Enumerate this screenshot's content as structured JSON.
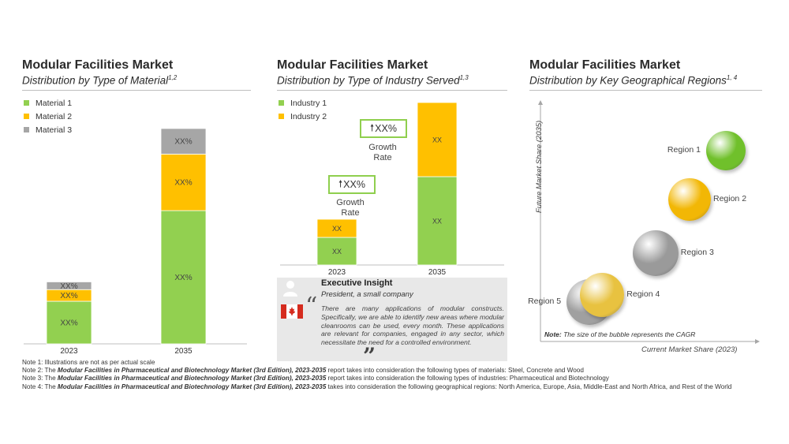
{
  "chart_data": [
    {
      "type": "bar",
      "stacked": true,
      "title": "Modular Facilities Market",
      "subtitle": "Distribution by Type of Material",
      "subtitle_sup": "1,2",
      "categories": [
        "2023",
        "2035"
      ],
      "series": [
        {
          "name": "Material 1",
          "color": "#92d050",
          "values": [
            55,
            172
          ],
          "labels": [
            "XX%",
            "XX%"
          ]
        },
        {
          "name": "Material 2",
          "color": "#ffc000",
          "values": [
            15,
            73
          ],
          "labels": [
            "XX%",
            "XX%"
          ]
        },
        {
          "name": "Material 3",
          "color": "#a6a6a6",
          "values": [
            10,
            33
          ],
          "labels": [
            "XX%",
            "XX%"
          ]
        }
      ],
      "ylim": [
        0,
        280
      ]
    },
    {
      "type": "bar",
      "stacked": true,
      "title": "Modular Facilities Market",
      "subtitle": "Distribution by Type of Industry Served",
      "subtitle_sup": "1,3",
      "categories": [
        "2023",
        "2035"
      ],
      "series": [
        {
          "name": "Industry 1",
          "color": "#92d050",
          "values": [
            35,
            112
          ],
          "labels": [
            "XX",
            "XX"
          ]
        },
        {
          "name": "Industry 2",
          "color": "#ffc000",
          "values": [
            23,
            94
          ],
          "labels": [
            "XX",
            "XX"
          ]
        }
      ],
      "ylim": [
        0,
        206
      ],
      "growth": [
        {
          "value": "XX%",
          "label": "Growth Rate"
        },
        {
          "value": "XX%",
          "label": "Growth Rate"
        }
      ]
    },
    {
      "type": "scatter",
      "title": "Modular Facilities Market",
      "subtitle": "Distribution by Key Geographical Regions",
      "subtitle_sup": "1, 4",
      "xlabel": "Current Market Share (2023)",
      "ylabel": "Future Market Share (2035)",
      "xlim": [
        0,
        100
      ],
      "ylim": [
        0,
        100
      ],
      "note_bold": "Note:",
      "note": "The size of the bubble represents the CAGR",
      "points": [
        {
          "name": "Region 1",
          "x": 87,
          "y": 82,
          "size": 50,
          "color": "#70c02b"
        },
        {
          "name": "Region 2",
          "x": 70,
          "y": 61,
          "size": 54,
          "color": "#f2b705"
        },
        {
          "name": "Region 3",
          "x": 54,
          "y": 38,
          "size": 58,
          "color": "#9a9a9a"
        },
        {
          "name": "Region 4",
          "x": 29,
          "y": 20,
          "size": 56,
          "color": "#e8c240"
        },
        {
          "name": "Region 5",
          "x": 23,
          "y": 17,
          "size": 58,
          "color": "#a0a0a0"
        }
      ]
    }
  ],
  "insight": {
    "heading": "Executive Insight",
    "role": "President, a small company",
    "quote": "There are many applications of modular constructs. Specifically, we are able to identify new areas where modular cleanrooms can be used, every month. These applications are relevant for companies, engaged in any sector, which necessitate the need for a controlled environment."
  },
  "notes": [
    {
      "pre": "Note 1: Illustrations are not as per actual scale",
      "bold": "",
      "post": ""
    },
    {
      "pre": "Note 2: The ",
      "bold": "Modular Facilities in Pharmaceutical and Biotechnology Market (3rd Edition), 2023-2035",
      "post": " report takes into consideration the following types of materials: Steel, Concrete and Wood"
    },
    {
      "pre": "Note 3: The ",
      "bold": "Modular Facilities in Pharmaceutical and Biotechnology Market (3rd Edition), 2023-2035",
      "post": " report takes into consideration the following types of industries: Pharmaceutical and Biotechnology"
    },
    {
      "pre": "Note 4: The ",
      "bold": "Modular Facilities in Pharmaceutical and Biotechnology Market (3rd Edition), 2023-2035",
      "post": " takes into consideration the following geographical regions: North America, Europe, Asia, Middle-East and North Africa, and Rest of the World"
    }
  ]
}
